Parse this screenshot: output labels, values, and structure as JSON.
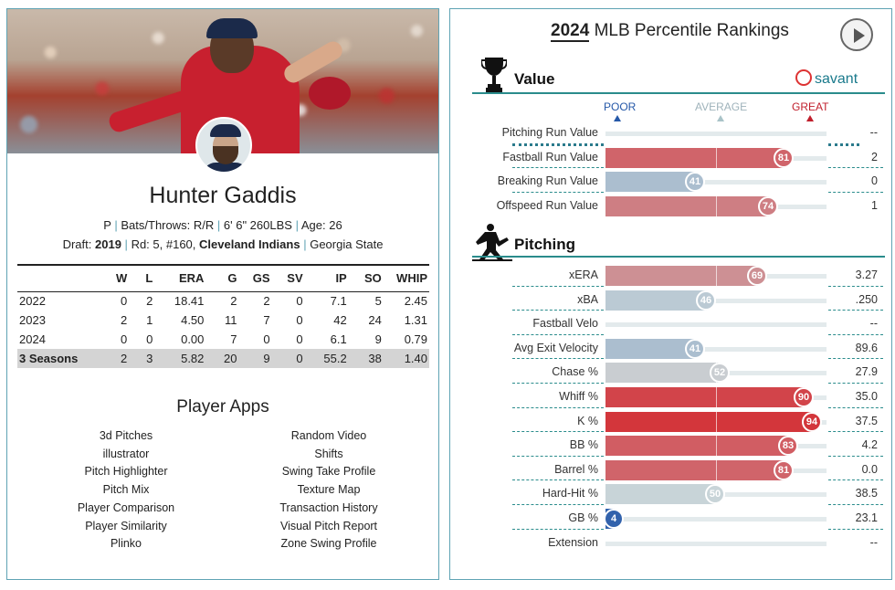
{
  "player": {
    "name": "Hunter Gaddis",
    "position": "P",
    "bats_throws_label": "Bats/Throws:",
    "bats_throws": "R/R",
    "height_weight": "6' 6\" 260LBS",
    "age_label": "Age:",
    "age": "26",
    "draft_label": "Draft:",
    "draft_year": "2019",
    "draft_detail": "Rd: 5, #160,",
    "draft_team": "Cleveland Indians",
    "school": "Georgia State"
  },
  "stats": {
    "headers": [
      "",
      "W",
      "L",
      "ERA",
      "G",
      "GS",
      "SV",
      "IP",
      "SO",
      "WHIP"
    ],
    "rows": [
      [
        "2022",
        "0",
        "2",
        "18.41",
        "2",
        "2",
        "0",
        "7.1",
        "5",
        "2.45"
      ],
      [
        "2023",
        "2",
        "1",
        "4.50",
        "11",
        "7",
        "0",
        "42",
        "24",
        "1.31"
      ],
      [
        "2024",
        "0",
        "0",
        "0.00",
        "7",
        "0",
        "0",
        "6.1",
        "9",
        "0.79"
      ],
      [
        "3 Seasons",
        "2",
        "3",
        "5.82",
        "20",
        "9",
        "0",
        "55.2",
        "38",
        "1.40"
      ]
    ]
  },
  "apps": {
    "title": "Player Apps",
    "col1": [
      "3d Pitches",
      "illustrator",
      "Pitch Highlighter",
      "Pitch Mix",
      "Player Comparison",
      "Player Similarity",
      "Plinko"
    ],
    "col2": [
      "Random Video",
      "Shifts",
      "Swing Take Profile",
      "Texture Map",
      "Transaction History",
      "Visual Pitch Report",
      "Zone Swing Profile"
    ]
  },
  "rankings": {
    "year": "2024",
    "title": "MLB Percentile Rankings",
    "brand": "savant",
    "scale": {
      "poor": "POOR",
      "average": "AVERAGE",
      "great": "GREAT"
    },
    "value_section": {
      "title": "Value",
      "rows": [
        {
          "label": "Pitching Run Value",
          "pct": null,
          "value": "--"
        },
        {
          "label": "Fastball Run Value",
          "pct": 81,
          "value": "2"
        },
        {
          "label": "Breaking Run Value",
          "pct": 41,
          "value": "0"
        },
        {
          "label": "Offspeed Run Value",
          "pct": 74,
          "value": "1"
        }
      ]
    },
    "pitching_section": {
      "title": "Pitching",
      "rows": [
        {
          "label": "xERA",
          "pct": 69,
          "value": "3.27"
        },
        {
          "label": "xBA",
          "pct": 46,
          "value": ".250"
        },
        {
          "label": "Fastball Velo",
          "pct": null,
          "value": "--"
        },
        {
          "label": "Avg Exit Velocity",
          "pct": 41,
          "value": "89.6"
        },
        {
          "label": "Chase %",
          "pct": 52,
          "value": "27.9"
        },
        {
          "label": "Whiff %",
          "pct": 90,
          "value": "35.0"
        },
        {
          "label": "K %",
          "pct": 94,
          "value": "37.5"
        },
        {
          "label": "BB %",
          "pct": 83,
          "value": "4.2"
        },
        {
          "label": "Barrel %",
          "pct": 81,
          "value": "0.0"
        },
        {
          "label": "Hard-Hit %",
          "pct": 50,
          "value": "38.5"
        },
        {
          "label": "GB %",
          "pct": 4,
          "value": "23.1"
        },
        {
          "label": "Extension",
          "pct": null,
          "value": "--"
        }
      ]
    }
  }
}
